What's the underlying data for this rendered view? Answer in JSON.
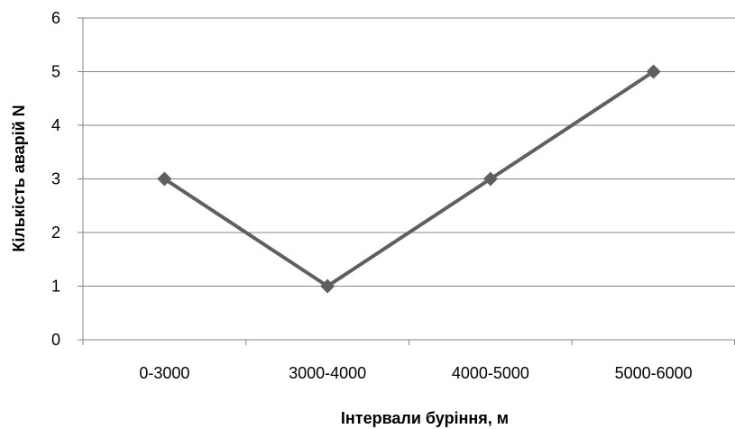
{
  "chart_data": {
    "type": "line",
    "title": "",
    "xlabel": "Інтервали буріння, м",
    "ylabel": "Кількість аварій N",
    "categories": [
      "0-3000",
      "3000-4000",
      "4000-5000",
      "5000-6000"
    ],
    "series": [
      {
        "values": [
          3,
          1,
          3,
          5
        ],
        "color": "#5f5f5f",
        "marker": "diamond"
      }
    ],
    "ylim": [
      0,
      6
    ],
    "yticks": [
      0,
      1,
      2,
      3,
      4,
      5,
      6
    ],
    "grid": "horizontal",
    "legend": "none",
    "colors": {
      "grid": "#878787",
      "line": "#5f5f5f"
    }
  }
}
